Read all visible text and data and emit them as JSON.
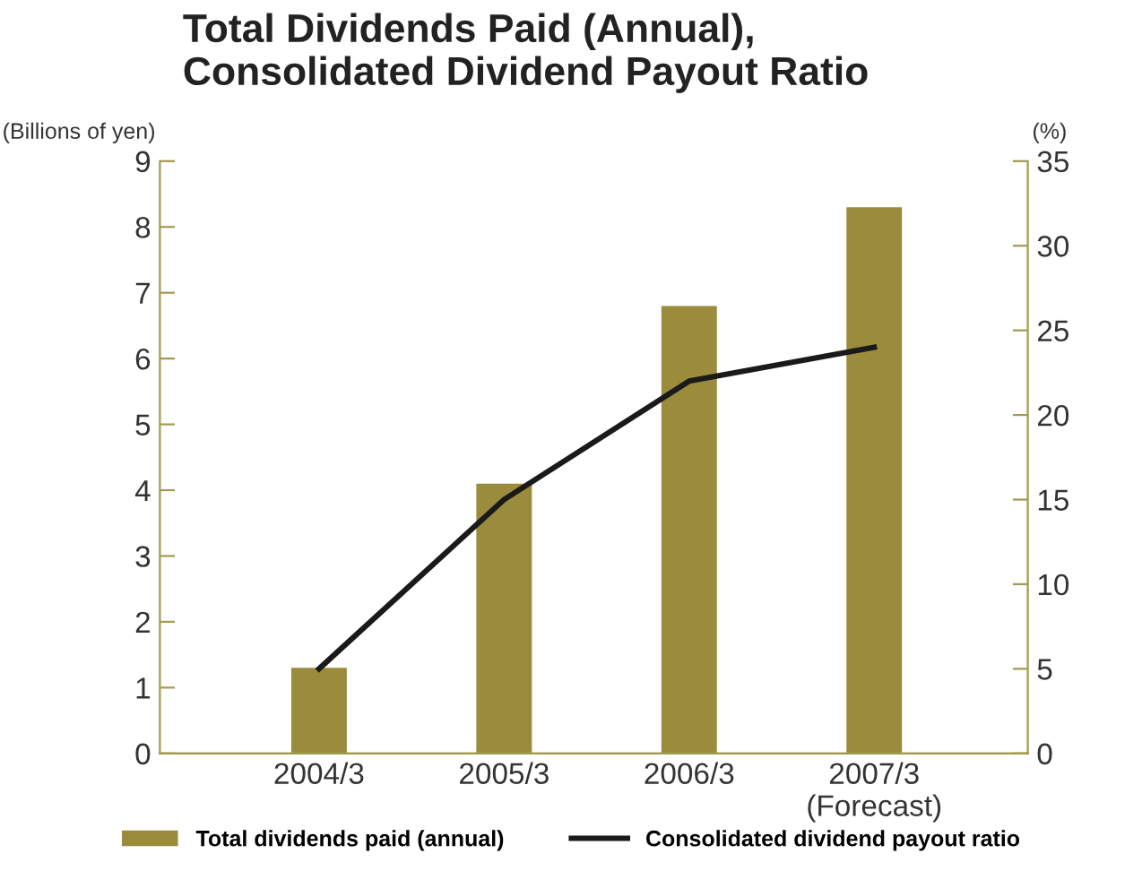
{
  "chart_data": {
    "type": "bar",
    "title": "Total Dividends Paid (Annual),\nConsolidated Dividend Payout Ratio",
    "ylabel": "(Billions of yen)",
    "y2label": "(%)",
    "categories": [
      "2004/3",
      "2005/3",
      "2006/3",
      "2007/3\n(Forecast)"
    ],
    "series": [
      {
        "name": "Total dividends paid (annual)",
        "color": "#9a8c3c",
        "values": [
          1.3,
          4.1,
          6.8,
          8.3
        ]
      },
      {
        "name": "Consolidated dividend payout ratio",
        "type": "line",
        "axis": "y2",
        "color": "#1a1a1a",
        "values": [
          5,
          15,
          22,
          24
        ]
      }
    ],
    "ylim": [
      0,
      9
    ],
    "yticks": [
      0,
      1,
      2,
      3,
      4,
      5,
      6,
      7,
      8,
      9
    ],
    "y2lim": [
      0,
      35
    ],
    "y2ticks": [
      0,
      5,
      10,
      15,
      20,
      25,
      30,
      35
    ],
    "grid": false,
    "legend": "bottom",
    "marker": "none",
    "line_style": "solid"
  }
}
